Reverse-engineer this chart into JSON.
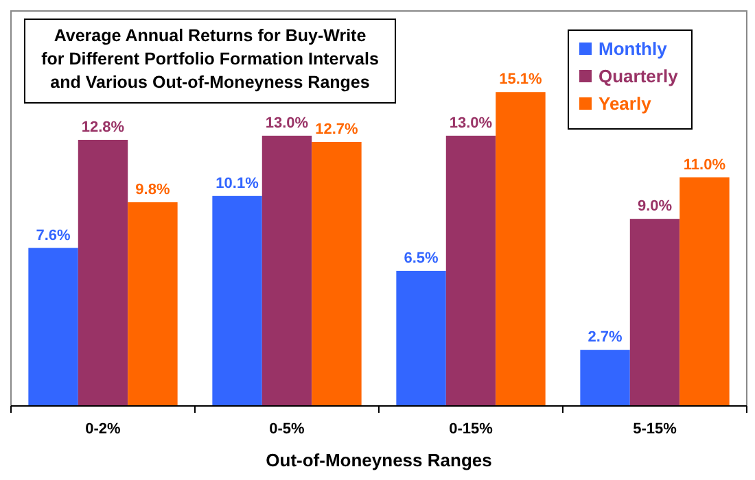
{
  "chart_data": {
    "type": "bar",
    "title": "Average Annual Returns for Buy-Write\nfor Different Portfolio Formation Intervals\nand Various Out-of-Moneyness Ranges",
    "xlabel": "Out-of-Moneyness Ranges",
    "categories": [
      "0-2%",
      "0-5%",
      "0-15%",
      "5-15%"
    ],
    "series": [
      {
        "name": "Monthly",
        "color": "#3366ff",
        "values": [
          7.6,
          10.1,
          6.5,
          2.7
        ],
        "value_labels": [
          "7.6%",
          "10.1%",
          "6.5%",
          "2.7%"
        ]
      },
      {
        "name": "Quarterly",
        "color": "#993366",
        "values": [
          12.8,
          13.0,
          13.0,
          9.0
        ],
        "value_labels": [
          "12.8%",
          "13.0%",
          "13.0%",
          "9.0%"
        ]
      },
      {
        "name": "Yearly",
        "color": "#ff6600",
        "values": [
          9.8,
          12.7,
          15.1,
          11.0
        ],
        "value_labels": [
          "9.8%",
          "12.7%",
          "15.1%",
          "11.0%"
        ]
      }
    ],
    "ylim": [
      0,
      19
    ],
    "legend": "top right",
    "tick_labels": "x"
  }
}
